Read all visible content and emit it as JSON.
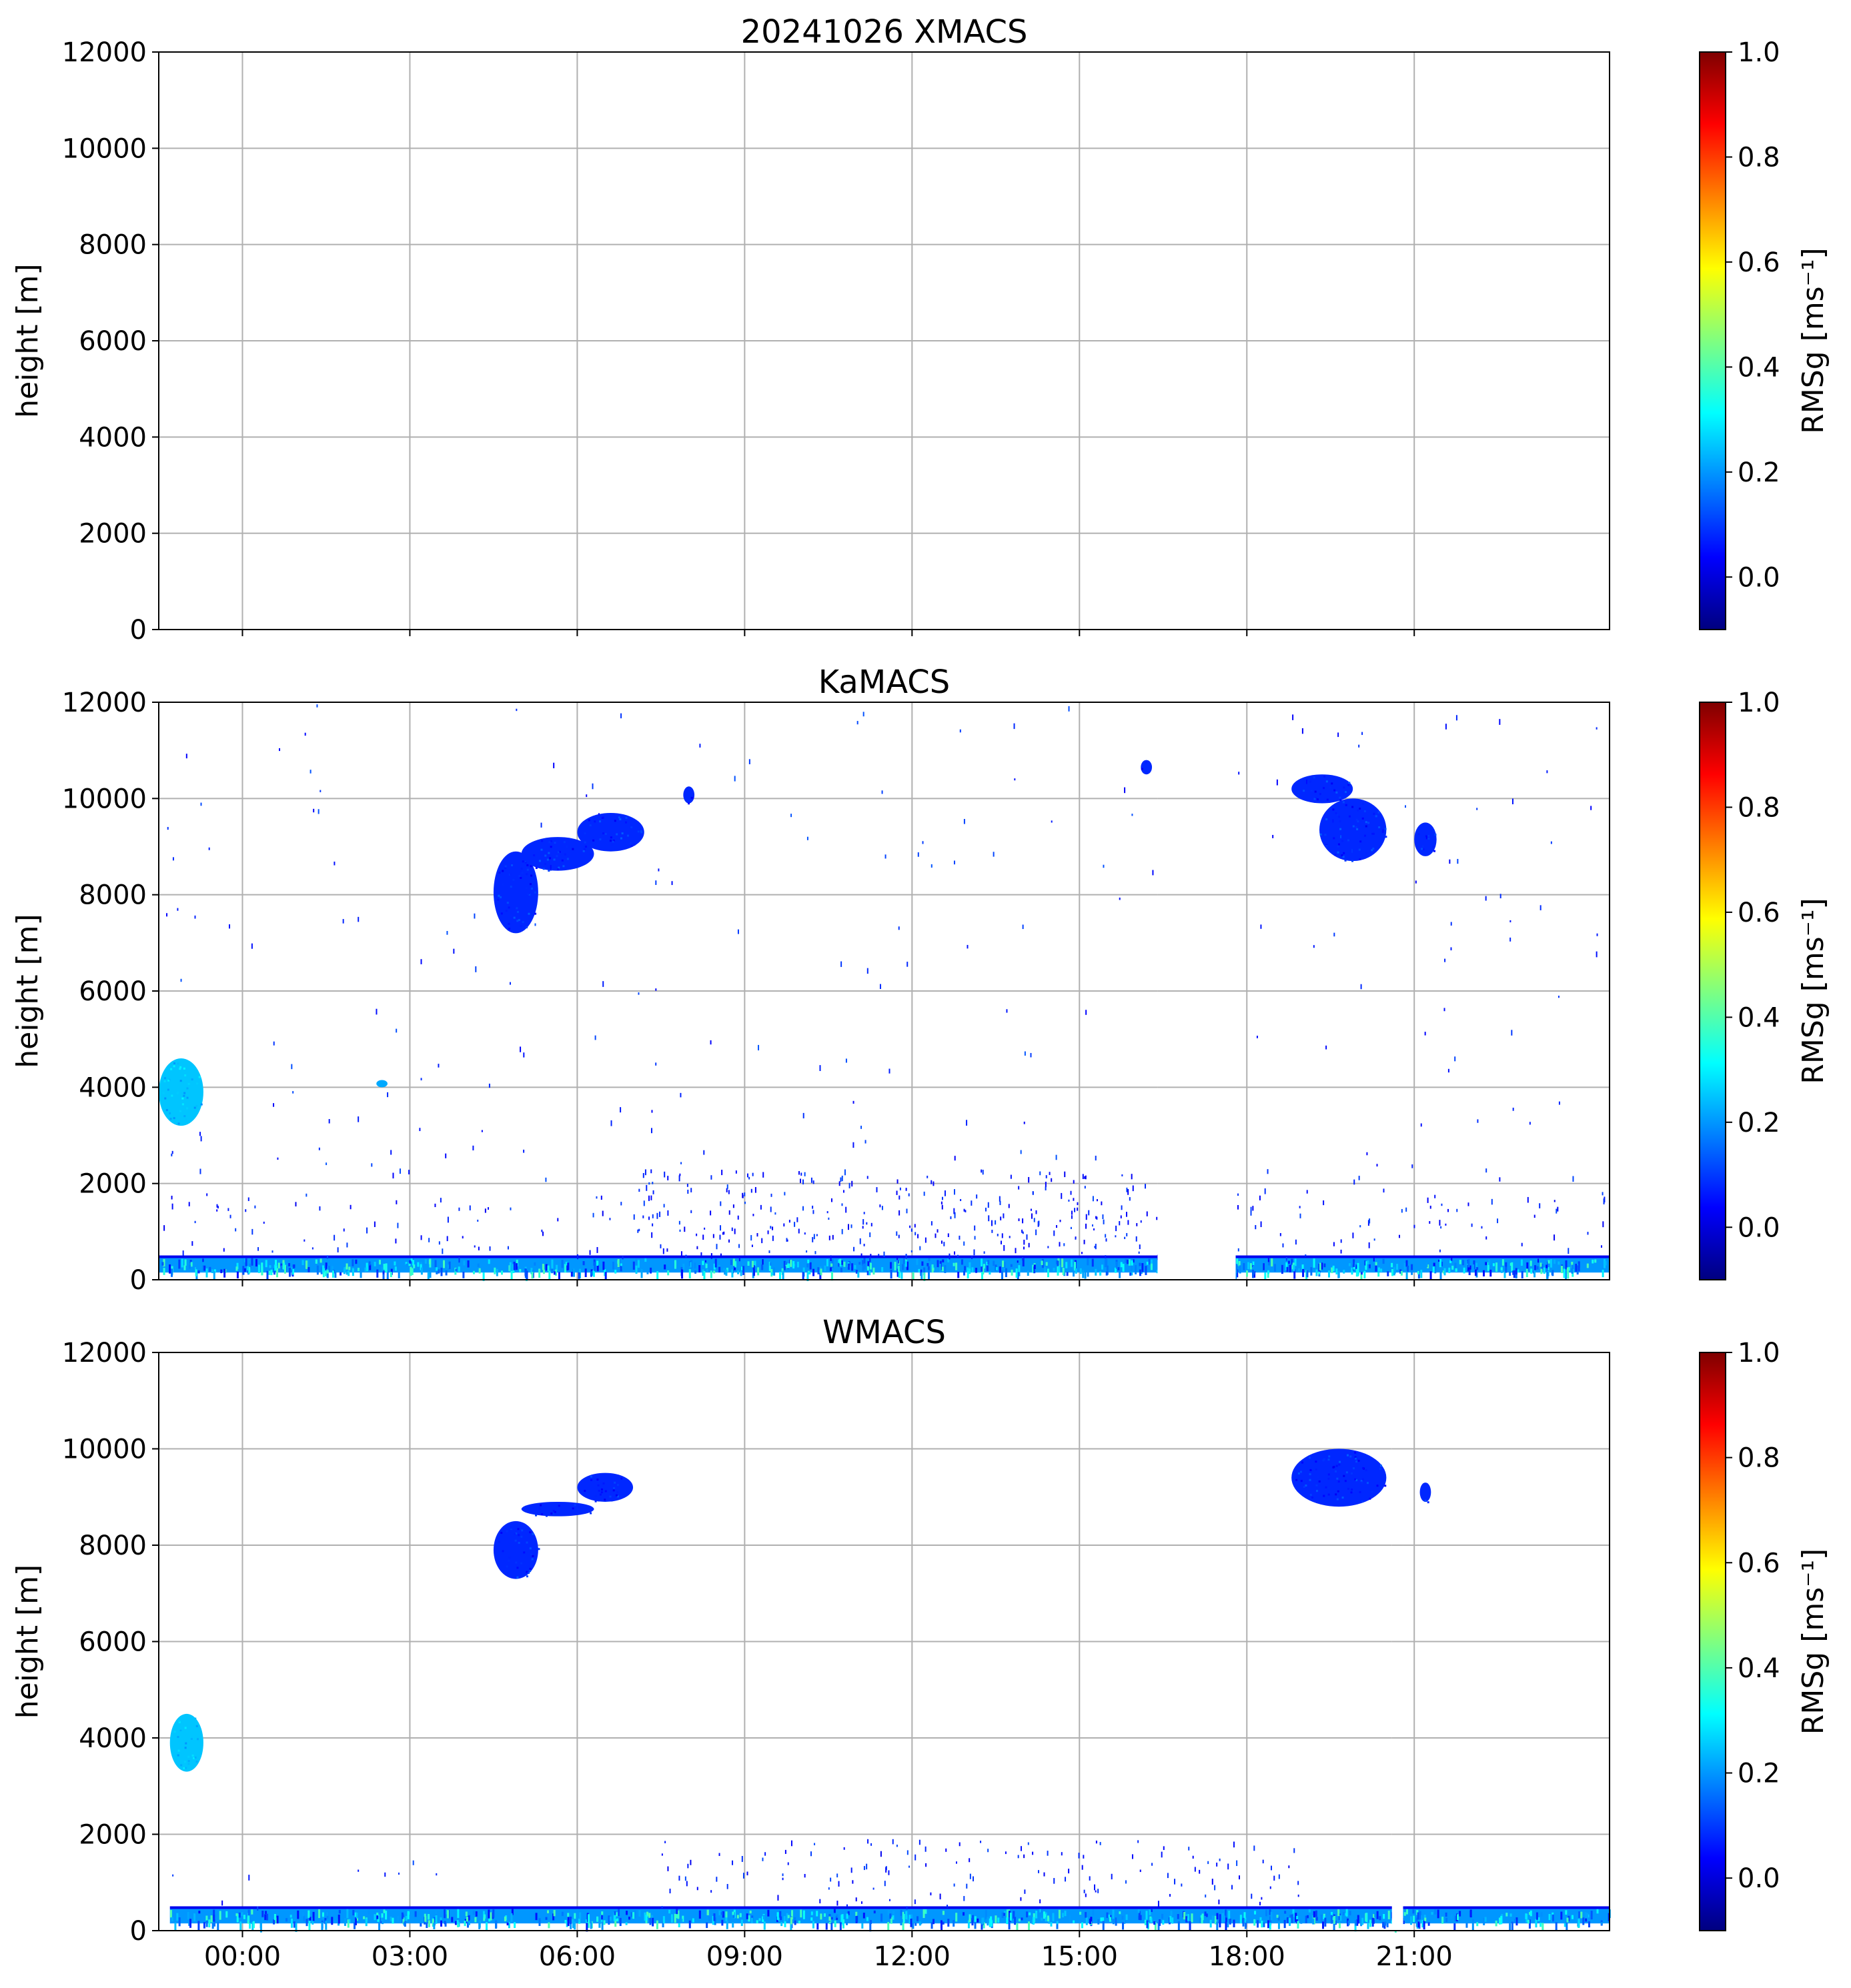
{
  "figure_title": "20241026 XMACS",
  "chart_data": [
    {
      "type": "heatmap",
      "title": "20241026 XMACS",
      "ylabel": "height [m]",
      "ylim": [
        0,
        12000
      ],
      "y_ticks": [
        0,
        2000,
        4000,
        6000,
        8000,
        10000,
        12000
      ],
      "xlim_hours": [
        -1.5,
        24.5
      ],
      "x_ticks": [
        "00:00",
        "03:00",
        "06:00",
        "09:00",
        "12:00",
        "15:00",
        "18:00",
        "21:00"
      ],
      "x_tick_labels_shown": false,
      "grid": true,
      "colorbar": {
        "label": "RMSg [ms⁻¹]",
        "min": -0.1,
        "max": 1.0,
        "ticks": [
          "0.0",
          "0.2",
          "0.4",
          "0.6",
          "0.8",
          "1.0"
        ],
        "colormap": "jet"
      },
      "features": []
    },
    {
      "type": "heatmap",
      "title": "KaMACS",
      "ylabel": "height [m]",
      "ylim": [
        0,
        12000
      ],
      "y_ticks": [
        0,
        2000,
        4000,
        6000,
        8000,
        10000,
        12000
      ],
      "xlim_hours": [
        -1.5,
        24.5
      ],
      "x_ticks": [
        "00:00",
        "03:00",
        "06:00",
        "09:00",
        "12:00",
        "15:00",
        "18:00",
        "21:00"
      ],
      "x_tick_labels_shown": false,
      "grid": true,
      "colorbar": {
        "label": "RMSg [ms⁻¹]",
        "min": -0.1,
        "max": 1.0,
        "ticks": [
          "0.0",
          "0.2",
          "0.4",
          "0.6",
          "0.8",
          "1.0"
        ],
        "colormap": "jet"
      },
      "data_gap_hours": [
        16.4,
        17.8
      ],
      "features": [
        {
          "kind": "blob",
          "t": [
            4.5,
            5.3
          ],
          "z": [
            7200,
            8900
          ],
          "rms": 0.08
        },
        {
          "kind": "blob",
          "t": [
            5.0,
            6.3
          ],
          "z": [
            8500,
            9200
          ],
          "rms": 0.08
        },
        {
          "kind": "blob",
          "t": [
            6.0,
            7.2
          ],
          "z": [
            8900,
            9700
          ],
          "rms": 0.08
        },
        {
          "kind": "blob",
          "t": [
            7.9,
            8.1
          ],
          "z": [
            9900,
            10250
          ],
          "rms": 0.08
        },
        {
          "kind": "blob",
          "t": [
            16.1,
            16.3
          ],
          "z": [
            10500,
            10800
          ],
          "rms": 0.08
        },
        {
          "kind": "blob",
          "t": [
            18.8,
            19.9
          ],
          "z": [
            9900,
            10500
          ],
          "rms": 0.08
        },
        {
          "kind": "blob",
          "t": [
            19.3,
            20.5
          ],
          "z": [
            8700,
            10000
          ],
          "rms": 0.08
        },
        {
          "kind": "blob",
          "t": [
            21.0,
            21.4
          ],
          "z": [
            8800,
            9500
          ],
          "rms": 0.08
        },
        {
          "kind": "blob",
          "t": [
            -1.5,
            -0.7
          ],
          "z": [
            3200,
            4600
          ],
          "rms": 0.25
        },
        {
          "kind": "blob",
          "t": [
            2.4,
            2.6
          ],
          "z": [
            4000,
            4150
          ],
          "rms": 0.22
        },
        {
          "kind": "surface_layer",
          "t": [
            -1.5,
            24.5
          ],
          "z": [
            150,
            450
          ],
          "rms": 0.2
        },
        {
          "kind": "scatter",
          "t": [
            -1.5,
            7.0
          ],
          "z": [
            400,
            1800
          ],
          "density": 0.3,
          "rms": 0.07
        },
        {
          "kind": "scatter",
          "t": [
            7.0,
            16.4
          ],
          "z": [
            400,
            2300
          ],
          "density": 0.9,
          "rms": 0.07
        },
        {
          "kind": "scatter",
          "t": [
            17.8,
            24.5
          ],
          "z": [
            400,
            1900
          ],
          "density": 0.35,
          "rms": 0.07
        },
        {
          "kind": "scatter",
          "t": [
            -1.5,
            24.5
          ],
          "z": [
            2000,
            12000
          ],
          "density": 0.04,
          "rms": 0.08
        }
      ]
    },
    {
      "type": "heatmap",
      "title": "WMACS",
      "ylabel": "height [m]",
      "ylim": [
        0,
        12000
      ],
      "y_ticks": [
        0,
        2000,
        4000,
        6000,
        8000,
        10000,
        12000
      ],
      "xlim_hours": [
        -1.5,
        24.5
      ],
      "x_ticks": [
        "00:00",
        "03:00",
        "06:00",
        "09:00",
        "12:00",
        "15:00",
        "18:00",
        "21:00"
      ],
      "x_tick_labels_shown": true,
      "grid": true,
      "colorbar": {
        "label": "RMSg [ms⁻¹]",
        "min": -0.1,
        "max": 1.0,
        "ticks": [
          "0.0",
          "0.2",
          "0.4",
          "0.6",
          "0.8",
          "1.0"
        ],
        "colormap": "jet"
      },
      "data_gap_hours": [
        20.6,
        20.8
      ],
      "features": [
        {
          "kind": "blob",
          "t": [
            4.5,
            5.3
          ],
          "z": [
            7300,
            8500
          ],
          "rms": 0.08
        },
        {
          "kind": "blob",
          "t": [
            5.0,
            6.3
          ],
          "z": [
            8600,
            8900
          ],
          "rms": 0.08
        },
        {
          "kind": "blob",
          "t": [
            6.0,
            7.0
          ],
          "z": [
            8900,
            9500
          ],
          "rms": 0.08
        },
        {
          "kind": "blob",
          "t": [
            18.8,
            20.5
          ],
          "z": [
            8800,
            10000
          ],
          "rms": 0.08
        },
        {
          "kind": "blob",
          "t": [
            21.1,
            21.3
          ],
          "z": [
            8900,
            9300
          ],
          "rms": 0.08
        },
        {
          "kind": "blob",
          "t": [
            -1.3,
            -0.7
          ],
          "z": [
            3300,
            4500
          ],
          "rms": 0.25
        },
        {
          "kind": "surface_layer",
          "t": [
            -1.3,
            24.5
          ],
          "z": [
            150,
            450
          ],
          "rms": 0.2
        },
        {
          "kind": "scatter",
          "t": [
            7.5,
            19.0
          ],
          "z": [
            500,
            1900
          ],
          "density": 0.45,
          "rms": 0.07
        },
        {
          "kind": "scatter",
          "t": [
            -1.3,
            7.5
          ],
          "z": [
            500,
            1500
          ],
          "density": 0.05,
          "rms": 0.07
        }
      ]
    }
  ]
}
